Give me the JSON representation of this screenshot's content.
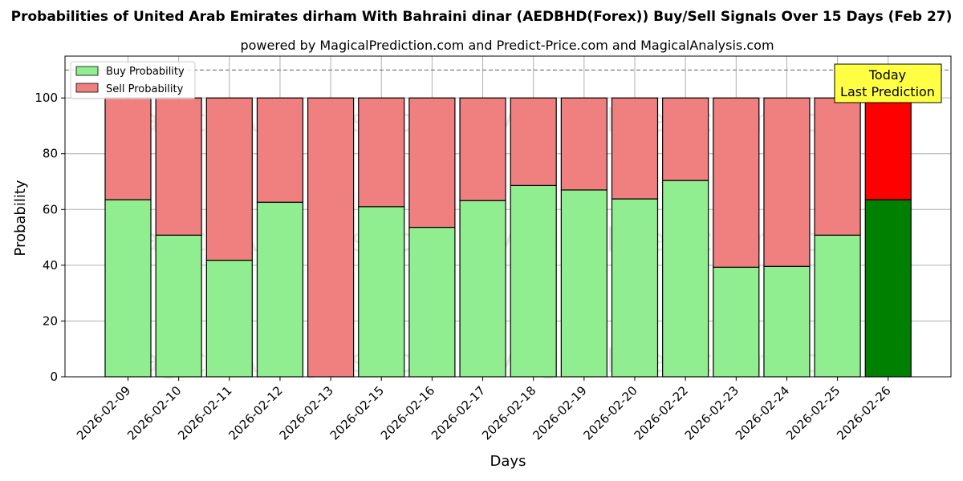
{
  "chart_data": {
    "type": "bar",
    "stacked": true,
    "title": "Probabilities of United Arab Emirates dirham With Bahraini dinar (AEDBHD(Forex)) Buy/Sell Signals Over 15 Days (Feb 27)",
    "subtitle": "powered by MagicalPrediction.com and Predict-Price.com and MagicalAnalysis.com",
    "xlabel": "Days",
    "ylabel": "Probability",
    "ylim": [
      0,
      115
    ],
    "yticks": [
      0,
      20,
      40,
      60,
      80,
      100
    ],
    "reference_line": 110,
    "grid": true,
    "legend_position": "top-left",
    "categories": [
      "2026-02-09",
      "2026-02-10",
      "2026-02-11",
      "2026-02-12",
      "2026-02-13",
      "2026-02-15",
      "2026-02-16",
      "2026-02-17",
      "2026-02-18",
      "2026-02-19",
      "2026-02-20",
      "2026-02-22",
      "2026-02-23",
      "2026-02-24",
      "2026-02-25",
      "2026-02-26"
    ],
    "series": [
      {
        "name": "Buy Probability",
        "color": "#90ee90",
        "highlight_color": "#008000",
        "values": [
          63.5,
          50.8,
          41.8,
          62.6,
          0,
          61.0,
          53.6,
          63.2,
          68.6,
          67.0,
          63.8,
          70.4,
          39.3,
          39.6,
          50.8,
          63.5
        ]
      },
      {
        "name": "Sell Probability",
        "color": "#f08080",
        "highlight_color": "#ff0000",
        "values": [
          36.5,
          49.2,
          58.2,
          37.4,
          100,
          39.0,
          46.4,
          36.8,
          31.4,
          33.0,
          36.2,
          29.6,
          60.7,
          60.4,
          49.2,
          36.5
        ]
      }
    ],
    "highlight_index": 15,
    "annotation": {
      "line1": "Today",
      "line2": "Last Prediction",
      "color": "#ffff44"
    },
    "watermarks": [
      "MagicalAnalysis.com",
      "MagicalPrediction.com"
    ]
  }
}
